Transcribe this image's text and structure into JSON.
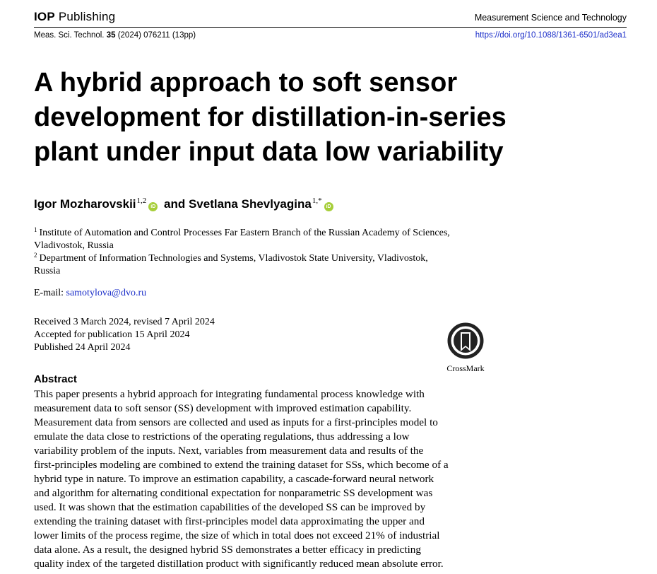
{
  "header": {
    "publisher_bold": "IOP",
    "publisher_rest": " Publishing",
    "journal_name": "Measurement Science and Technology",
    "citation_prefix": "Meas. Sci. Technol. ",
    "citation_volume": "35",
    "citation_suffix": " (2024) 076211 (13pp)",
    "doi": "https://doi.org/10.1088/1361-6501/ad3ea1"
  },
  "title_lines": [
    "A hybrid approach to soft sensor",
    "development for distillation-in-series",
    "plant under input data low variability"
  ],
  "authors": [
    {
      "name": "Igor Mozharovskii",
      "affil": "1,2",
      "orcid": "iD"
    },
    {
      "sep": " and "
    },
    {
      "name": "Svetlana Shevlyagina",
      "affil": "1,*",
      "orcid": "iD"
    }
  ],
  "affiliations": [
    {
      "num": "1",
      "lines": [
        "Institute of Automation and Control Processes Far Eastern Branch of the Russian Academy of Sciences,",
        "Vladivostok, Russia"
      ]
    },
    {
      "num": "2",
      "lines": [
        "Department of Information Technologies and Systems, Vladivostok State University, Vladivostok,",
        "Russia"
      ]
    }
  ],
  "email": {
    "label": "E-mail: ",
    "address": "samotylova@dvo.ru"
  },
  "dates": {
    "received": "Received 3 March 2024, revised 7 April 2024",
    "accepted": "Accepted for publication 15 April 2024",
    "published": "Published 24 April 2024"
  },
  "crossmark": {
    "label": "CrossMark",
    "icon": "crossmark-icon"
  },
  "abstract": {
    "heading": "Abstract",
    "lines": [
      "This paper presents a hybrid approach for integrating fundamental process knowledge with",
      "measurement data to soft sensor (SS) development with improved estimation capability.",
      "Measurement data from sensors are collected and used as inputs for a first-principles model to",
      "emulate the data close to restrictions of the operating regulations, thus addressing a low",
      "variability problem of the inputs. Next, variables from measurement data and results of the",
      "first-principles modeling are combined to extend the training dataset for SSs, which become of a",
      "hybrid type in nature. To improve an estimation capability, a cascade-forward neural network",
      "and algorithm for alternating conditional expectation for nonparametric SS development was",
      "used. It was shown that the estimation capabilities of the developed SS can be improved by",
      "extending the training dataset with first-principles model data approximating the upper and",
      "lower limits of the process regime, the size of which in total does not exceed 21% of industrial",
      "data alone. As a result, the designed hybrid SS demonstrates a better efficacy in predicting",
      "quality index of the targeted distillation product with significantly reduced mean absolute error."
    ]
  }
}
